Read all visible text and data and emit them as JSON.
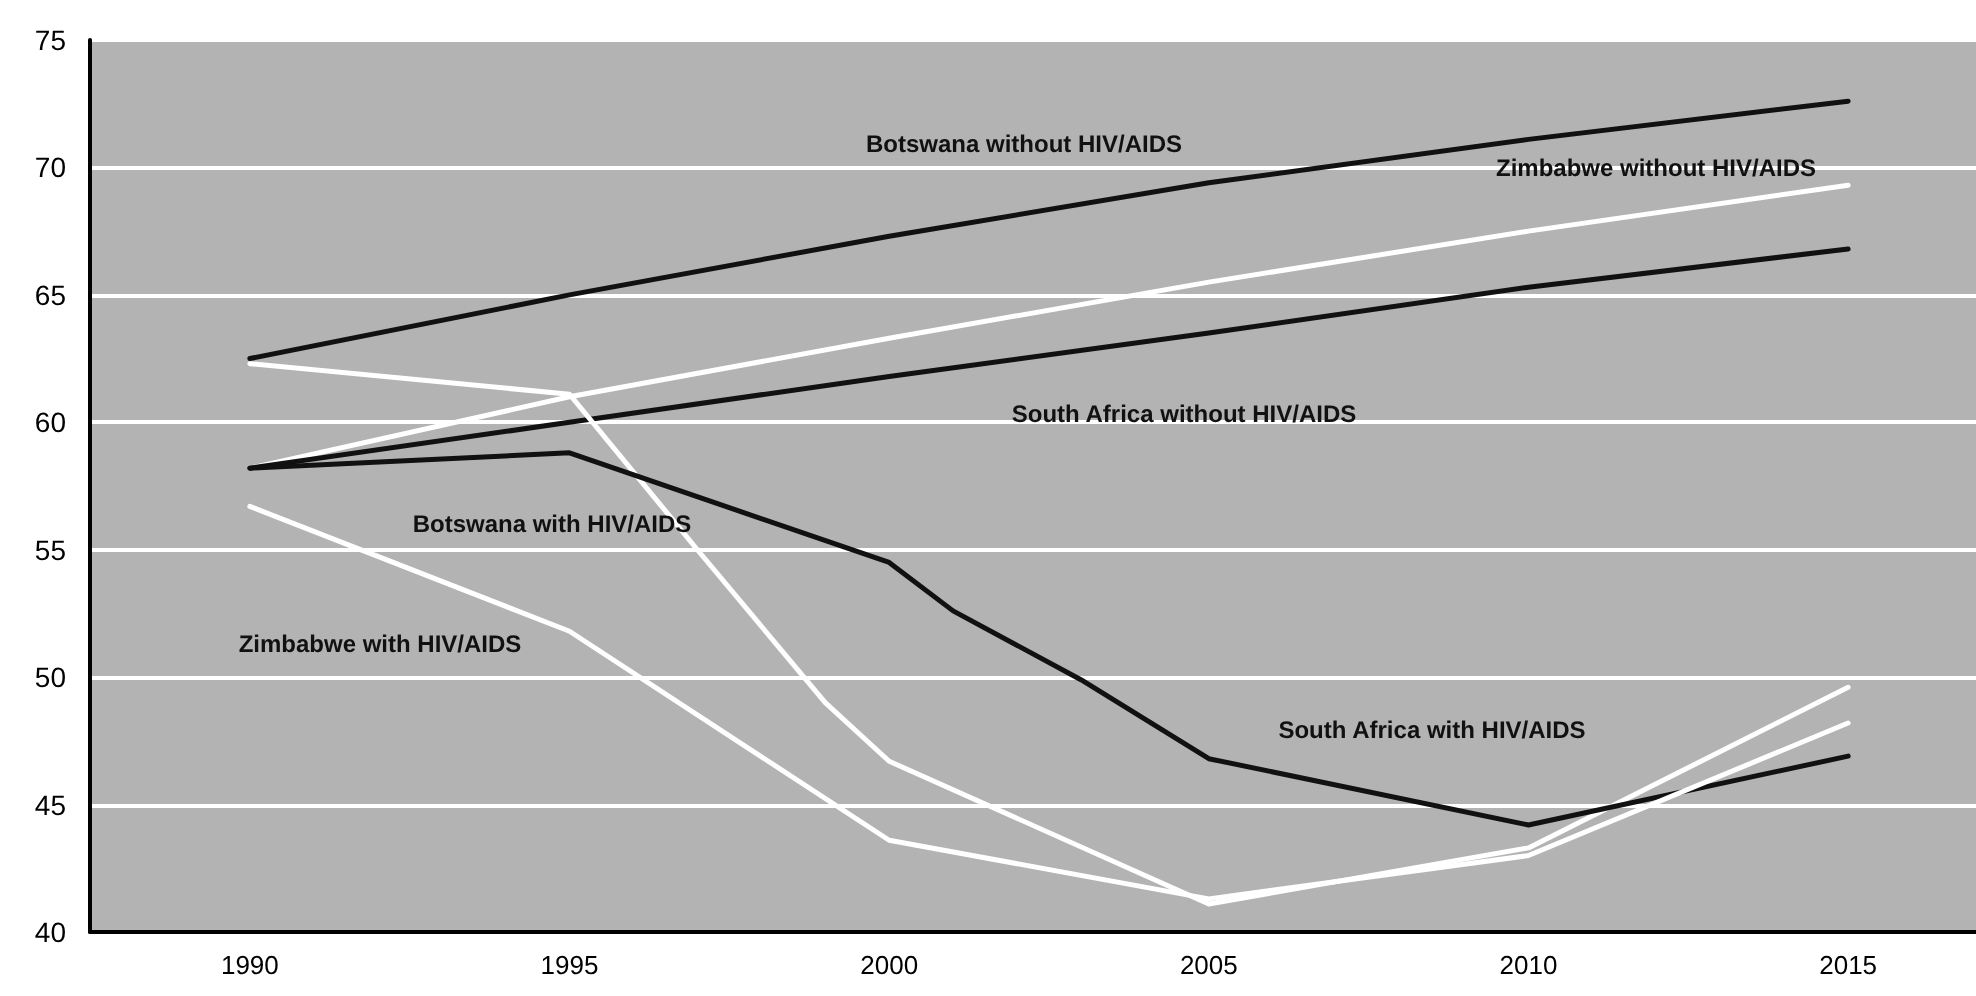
{
  "chart_data": {
    "type": "line",
    "xlim": [
      1987.5,
      2017
    ],
    "xticks": [
      1990,
      1995,
      2000,
      2005,
      2010,
      2015
    ],
    "ylim": [
      40,
      75
    ],
    "yticks": [
      40,
      45,
      50,
      55,
      60,
      65,
      70,
      75
    ],
    "grid": "y",
    "marker": "none",
    "line_style": "solid",
    "series": [
      {
        "name": "Botswana without HIV/AIDS",
        "color": "#111111",
        "x": [
          1990,
          1995,
          2000,
          2005,
          2010,
          2015
        ],
        "values": [
          62.5,
          65.0,
          67.3,
          69.4,
          71.1,
          72.6
        ]
      },
      {
        "name": "Zimbabwe without HIV/AIDS",
        "color": "#ffffff",
        "x": [
          1990,
          1995,
          2000,
          2005,
          2010,
          2015
        ],
        "values": [
          58.2,
          61.0,
          63.3,
          65.5,
          67.5,
          69.3
        ]
      },
      {
        "name": "South Africa without HIV/AIDS",
        "color": "#111111",
        "x": [
          1990,
          1995,
          2000,
          2005,
          2010,
          2015
        ],
        "values": [
          58.2,
          60.0,
          61.8,
          63.5,
          65.3,
          66.8
        ]
      },
      {
        "name": "Botswana with HIV/AIDS",
        "color": "#ffffff",
        "x": [
          1990,
          1995,
          1997,
          1999,
          2000,
          2005,
          2010,
          2015
        ],
        "values": [
          62.3,
          61.1,
          55.0,
          49.0,
          46.7,
          41.1,
          43.3,
          49.6
        ]
      },
      {
        "name": "South Africa with HIV/AIDS",
        "color": "#111111",
        "x": [
          1990,
          1995,
          2000,
          2001,
          2003,
          2005,
          2010,
          2015
        ],
        "values": [
          58.2,
          58.8,
          54.5,
          52.6,
          49.9,
          46.8,
          44.2,
          46.9
        ]
      },
      {
        "name": "Zimbabwe with HIV/AIDS",
        "color": "#ffffff",
        "x": [
          1990,
          1995,
          2000,
          2005,
          2010,
          2015
        ],
        "values": [
          56.7,
          51.8,
          43.6,
          41.3,
          43.0,
          48.2
        ]
      }
    ]
  }
}
